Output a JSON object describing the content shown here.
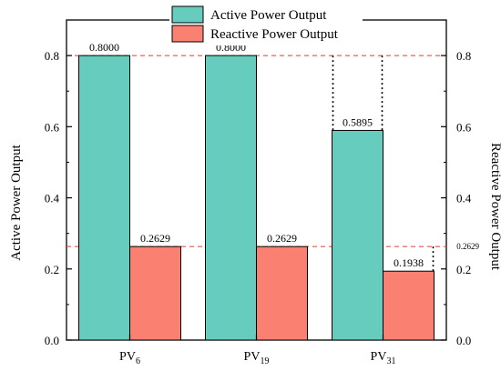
{
  "chart_data": {
    "type": "bar",
    "categories": [
      {
        "base": "PV",
        "sub": "6"
      },
      {
        "base": "PV",
        "sub": "19"
      },
      {
        "base": "PV",
        "sub": "31"
      }
    ],
    "series": [
      {
        "name": "Active Power Output",
        "color": "#66CDBE",
        "values": [
          0.8,
          0.8,
          0.5895
        ],
        "labels": [
          "0.8000",
          "0.8000",
          "0.5895"
        ]
      },
      {
        "name": "Reactive Power Output",
        "color": "#FA8072",
        "values": [
          0.2629,
          0.2629,
          0.1938
        ],
        "labels": [
          "0.2629",
          "0.2629",
          "0.1938"
        ]
      }
    ],
    "ylabel_left": "Active Power Output",
    "ylabel_right": "Reactive Power Output",
    "ylim": [
      0,
      0.9
    ],
    "yticks": [
      "0.0",
      "0.2",
      "0.4",
      "0.6",
      "0.8"
    ],
    "reference_lines": [
      0.8,
      0.2629
    ],
    "reference_line_color": "#E8382F",
    "annotations": [
      {
        "text": "0.2629"
      }
    ],
    "legend_position": "top-center",
    "grid": false
  }
}
